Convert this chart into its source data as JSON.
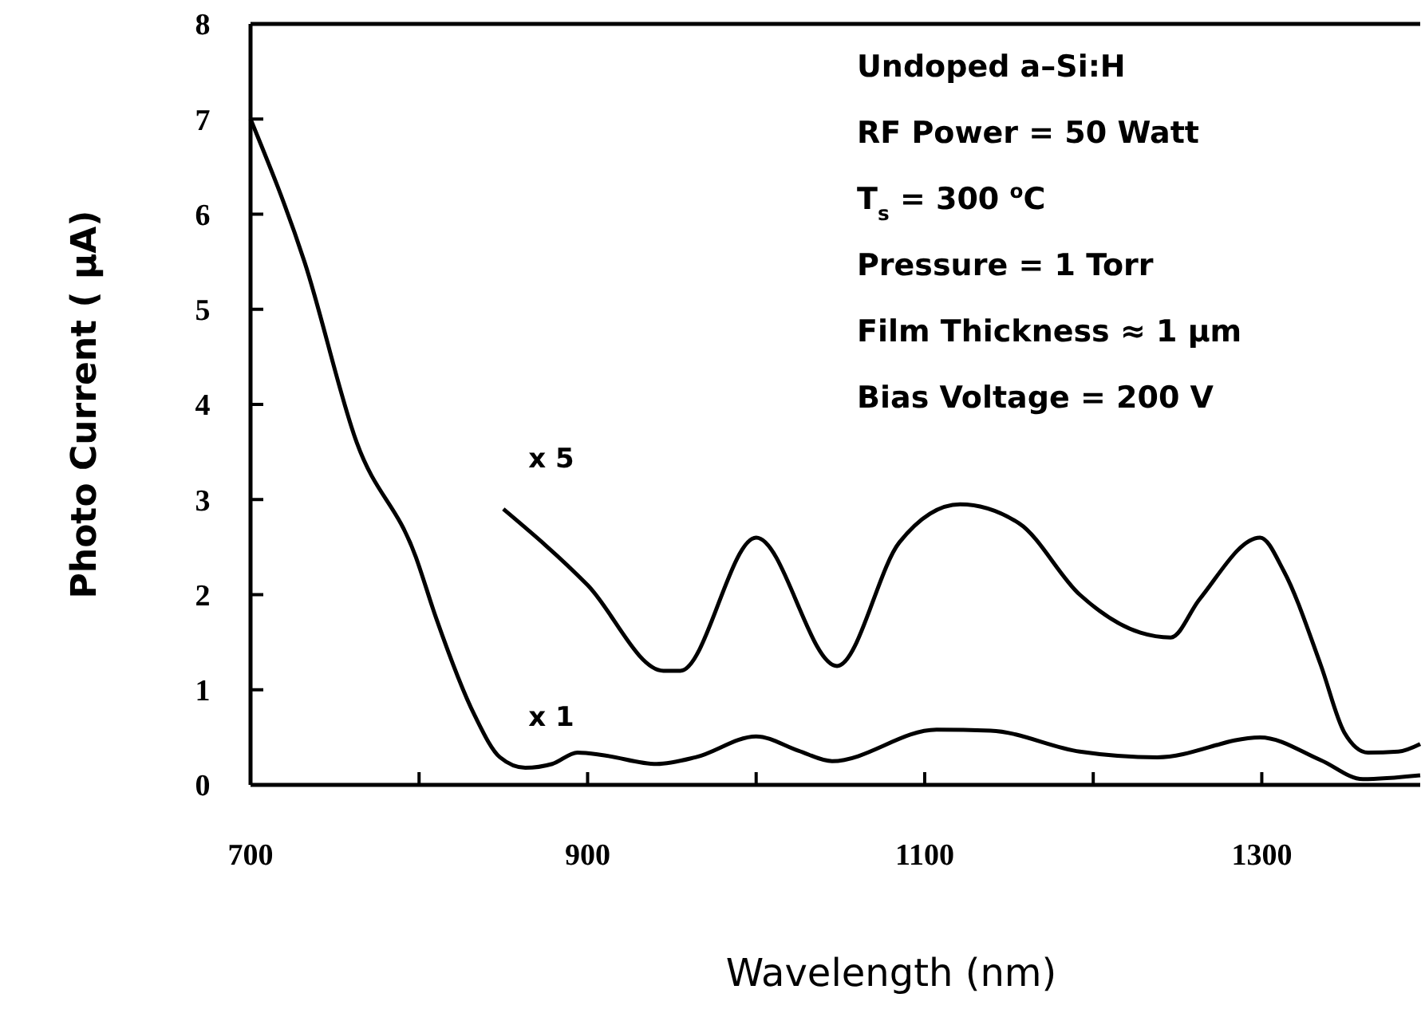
{
  "chart_data": {
    "type": "line",
    "xlabel": "Wavelength (nm)",
    "ylabel": "Photo Current ( µA)",
    "xlim": [
      700,
      1394
    ],
    "ylim": [
      0,
      8
    ],
    "xticks": [
      700,
      {
        "value": 800,
        "label": null
      },
      900,
      {
        "value": 1000,
        "label": null
      },
      1100,
      {
        "value": 1200,
        "label": null
      },
      1300
    ],
    "yticks": [
      0,
      1,
      2,
      3,
      4,
      5,
      6,
      7,
      8
    ],
    "grid": false,
    "marker": "none",
    "line_style": "solid",
    "series": [
      {
        "name": "x 1",
        "color": "#000000",
        "x": [
          700,
          732,
          763,
          798,
          810,
          833,
          848,
          863,
          879,
          894,
          910,
          941,
          964,
          1000,
          1025,
          1045,
          1107,
          1139,
          1192,
          1238,
          1299,
          1335,
          1360,
          1394
        ],
        "values": [
          7,
          5.5,
          3.6,
          2.4,
          1.76,
          0.73,
          0.29,
          0.18,
          0.22,
          0.34,
          0.31,
          0.22,
          0.29,
          0.51,
          0.36,
          0.25,
          0.58,
          0.57,
          0.35,
          0.29,
          0.5,
          0.26,
          0.06,
          0.1
        ]
      },
      {
        "name": "x 5",
        "color": "#000000",
        "x": [
          850,
          900,
          945,
          955,
          1000,
          1048,
          1085,
          1121,
          1156,
          1192,
          1228,
          1246,
          1263,
          1299,
          1313,
          1335,
          1349,
          1363,
          1381,
          1394
        ],
        "values": [
          2.9,
          2.1,
          1.2,
          1.2,
          2.6,
          1.25,
          2.55,
          2.95,
          2.75,
          2.0,
          1.6,
          1.55,
          1.95,
          2.6,
          2.25,
          1.26,
          0.55,
          0.34,
          0.35,
          0.43
        ]
      }
    ],
    "annotations": [
      "Undoped a–Si:H",
      "RF Power = 50 Watt",
      "T$_{s}$ = 300 $^{o}$C",
      "Pressure = 1 Torr",
      "Film Thickness ≈ 1 µm",
      "Bias Voltage = 200 V"
    ]
  }
}
